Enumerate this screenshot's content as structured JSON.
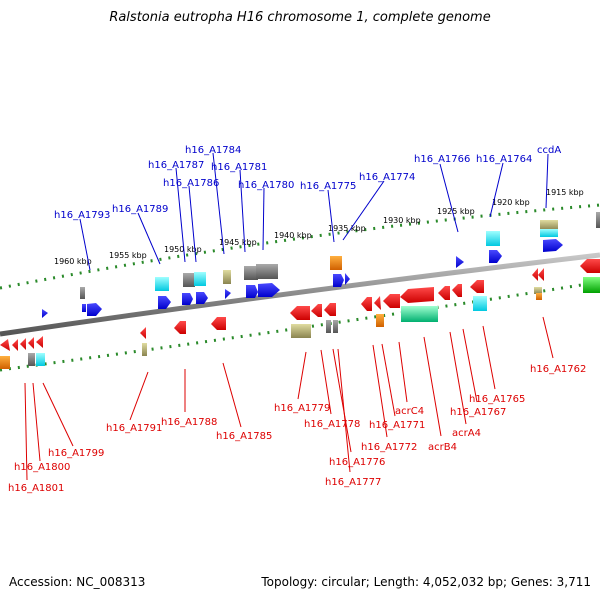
{
  "title": "Ralstonia eutropha H16 chromosome 1, complete genome",
  "footer": {
    "accession": "Accession: NC_008313",
    "topology": "Topology: circular; Length: 4,052,032 bp; Genes: 3,711"
  },
  "colors": {
    "forward_label": "#0000cc",
    "reverse_label": "#dd0000",
    "backbone": "#777777",
    "tick": "#2a8a2a",
    "forward_gene": "#0000ee",
    "reverse_gene": "#ee0000"
  },
  "ticks": [
    "1960 kbp",
    "1955 kbp",
    "1950 kbp",
    "1945 kbp",
    "1940 kbp",
    "1935 kbp",
    "1930 kbp",
    "1925 kbp",
    "1920 kbp",
    "1915 kbp"
  ],
  "forward_labels": [
    "h16_A1793",
    "h16_A1789",
    "h16_A1787",
    "h16_A1786",
    "h16_A1784",
    "h16_A1781",
    "h16_A1780",
    "h16_A1775",
    "h16_A1774",
    "h16_A1766",
    "h16_A1764",
    "ccdA"
  ],
  "reverse_labels": [
    "h16_A1801",
    "h16_A1800",
    "h16_A1799",
    "h16_A1791",
    "h16_A1788",
    "h16_A1785",
    "h16_A1779",
    "h16_A1778",
    "h16_A1776",
    "h16_A1777",
    "h16_A1772",
    "h16_A1771",
    "acrC4",
    "acrB4",
    "acrA4",
    "h16_A1767",
    "h16_A1765",
    "h16_A1762"
  ]
}
